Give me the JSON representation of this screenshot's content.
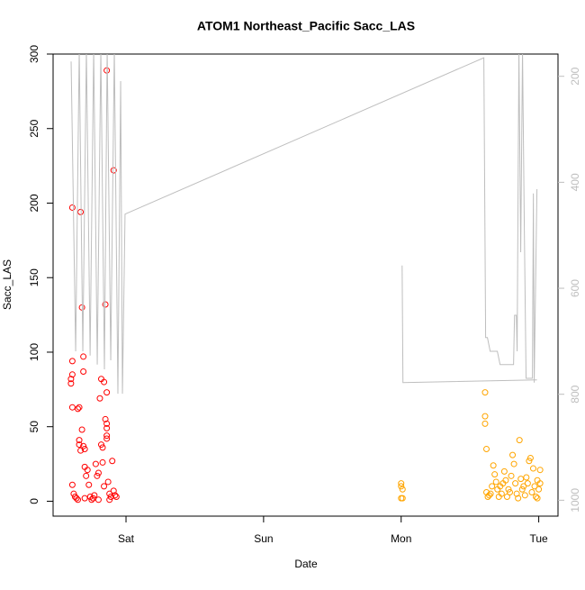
{
  "chart_data": {
    "type": "scatter",
    "title": "ATOM1 Northeast_Pacific Sacc_LAS",
    "x_label": "Date",
    "y_label": "Sacc_LAS",
    "xlim": [
      0.47,
      4.14
    ],
    "xticks": [
      {
        "value": 1,
        "label": "Sat"
      },
      {
        "value": 2,
        "label": "Sun"
      },
      {
        "value": 3,
        "label": "Mon"
      },
      {
        "value": 4,
        "label": "Tue"
      }
    ],
    "ylim": [
      -10,
      300
    ],
    "yticks": [
      0,
      50,
      100,
      150,
      200,
      250,
      300
    ],
    "y2lim": [
      1030,
      158
    ],
    "y2ticks": [
      200,
      400,
      600,
      800,
      1000
    ],
    "series": [
      {
        "color": "#ff0000",
        "x": [
          0.61,
          0.61,
          0.61,
          0.6,
          0.6,
          0.61,
          0.61,
          0.62,
          0.63,
          0.64,
          0.65,
          0.66,
          0.66,
          0.66,
          0.67,
          0.67,
          0.68,
          0.69,
          0.69,
          0.68,
          0.69,
          0.7,
          0.7,
          0.71,
          0.72,
          0.73,
          0.74,
          0.75,
          0.76,
          0.77,
          0.78,
          0.79,
          0.8,
          0.81,
          0.82,
          0.82,
          0.83,
          0.83,
          0.84,
          0.84,
          0.85,
          0.86,
          0.86,
          0.85,
          0.86,
          0.86,
          0.86,
          0.86,
          0.87,
          0.88,
          0.89,
          0.9,
          0.91,
          0.91,
          0.92,
          0.8,
          0.7,
          0.65,
          0.88,
          0.93
        ],
        "values": [
          197,
          94,
          85,
          82,
          79,
          63,
          11,
          5,
          3,
          2,
          62,
          63,
          41,
          38,
          194,
          34,
          130,
          97,
          87,
          48,
          37,
          35,
          23,
          17,
          21,
          11,
          3,
          1,
          2,
          4,
          25,
          17,
          19,
          69,
          82,
          38,
          36,
          26,
          10,
          80,
          132,
          289,
          73,
          55,
          52,
          44,
          42,
          49,
          13,
          5,
          3,
          27,
          222,
          7,
          4,
          1,
          2,
          1,
          1,
          3
        ]
      },
      {
        "color": "#ffa500",
        "x": [
          3.0,
          3.0,
          3.01,
          3.0,
          3.01,
          3.61,
          3.61,
          3.61,
          3.62,
          3.62,
          3.63,
          3.64,
          3.65,
          3.66,
          3.67,
          3.68,
          3.69,
          3.7,
          3.71,
          3.72,
          3.73,
          3.74,
          3.75,
          3.76,
          3.77,
          3.78,
          3.79,
          3.8,
          3.81,
          3.82,
          3.83,
          3.84,
          3.85,
          3.86,
          3.87,
          3.88,
          3.89,
          3.9,
          3.91,
          3.92,
          3.93,
          3.94,
          3.95,
          3.96,
          3.97,
          3.98,
          3.99,
          4.0,
          4.01,
          4.01,
          3.99
        ],
        "values": [
          12,
          10,
          8,
          2,
          2,
          73,
          57,
          52,
          35,
          6,
          3,
          4,
          5,
          10,
          24,
          18,
          13,
          8,
          3,
          10,
          5,
          12,
          20,
          14,
          3,
          8,
          6,
          17,
          31,
          25,
          12,
          5,
          2,
          41,
          15,
          8,
          10,
          4,
          16,
          12,
          27,
          29,
          6,
          22,
          10,
          3,
          14,
          8,
          21,
          12,
          2
        ]
      },
      {
        "type": "line",
        "axis": "y2",
        "color": "#bebebe",
        "x": [
          0.601,
          0.634,
          0.66,
          0.686,
          0.712,
          0.739,
          0.765,
          0.791,
          0.817,
          0.843,
          0.863,
          0.889,
          0.915,
          0.941,
          0.961,
          0.974,
          0.993,
          3.601,
          3.614,
          3.627,
          3.647,
          3.699,
          3.719,
          3.745,
          3.817,
          3.824,
          3.837,
          3.843,
          3.856,
          3.869,
          3.882,
          3.895,
          3.908,
          3.954,
          3.961,
          3.967,
          3.987,
          null,
          3.007,
          3.013,
          3.987
        ],
        "values": [
          172,
          719,
          150,
          719,
          150,
          727,
          150,
          744,
          150,
          753,
          150,
          736,
          150,
          799,
          209,
          799,
          460,
          165,
          693,
          693,
          719,
          719,
          744,
          744,
          744,
          651,
          651,
          719,
          150,
          532,
          150,
          481,
          770,
          770,
          421,
          778,
          413,
          null,
          557,
          778,
          773
        ]
      }
    ]
  }
}
